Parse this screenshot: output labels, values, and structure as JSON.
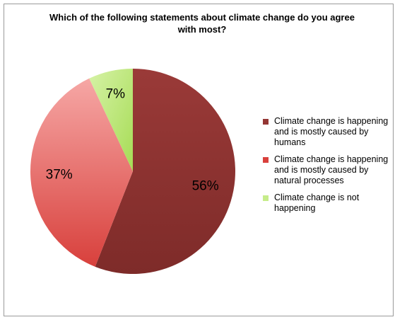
{
  "chart_data": {
    "type": "pie",
    "title": "Which of the following statements about climate change do you agree with most?",
    "slices": [
      {
        "label": "Climate change is happening and is mostly caused by humans",
        "value": 56,
        "display": "56%",
        "color": "#943634",
        "gradient_to": "#7a2a28"
      },
      {
        "label": "Climate change is happening and is mostly caused by natural processes",
        "value": 37,
        "display": "37%",
        "color": "#d9403c",
        "gradient_to": "#f4a2a0"
      },
      {
        "label": "Climate change is not happening",
        "value": 7,
        "display": "7%",
        "color": "#c6ec8a",
        "gradient_to": "#a9dc5a"
      }
    ],
    "legend_position": "right"
  }
}
